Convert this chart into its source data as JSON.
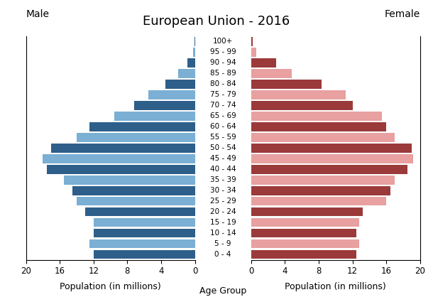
{
  "title": "European Union - 2016",
  "age_groups": [
    "100+",
    "95 - 99",
    "90 - 94",
    "85 - 89",
    "80 - 84",
    "75 - 79",
    "70 - 74",
    "65 - 69",
    "60 - 64",
    "55 - 59",
    "50 - 54",
    "45 - 49",
    "40 - 44",
    "35 - 39",
    "30 - 34",
    "25 - 29",
    "20 - 24",
    "15 - 19",
    "10 - 14",
    "5 - 9",
    "0 - 4"
  ],
  "male": [
    0.05,
    0.25,
    0.9,
    2.0,
    3.5,
    5.5,
    7.2,
    9.5,
    12.5,
    14.0,
    17.0,
    18.0,
    17.5,
    15.5,
    14.5,
    14.0,
    13.0,
    12.0,
    12.0,
    12.5,
    12.0
  ],
  "female": [
    0.2,
    0.6,
    3.0,
    4.8,
    8.3,
    11.2,
    12.0,
    15.5,
    16.0,
    17.0,
    19.0,
    19.2,
    18.5,
    17.0,
    16.5,
    16.0,
    13.2,
    12.8,
    12.5,
    12.8,
    12.5
  ],
  "male_dark": "#2e5f8a",
  "male_light": "#7bafd4",
  "female_dark": "#9b3a3a",
  "female_light": "#e8a0a0",
  "xlabel_left": "Population (in millions)",
  "xlabel_center": "Age Group",
  "xlabel_right": "Population (in millions)",
  "label_male": "Male",
  "label_female": "Female",
  "xlim": 20,
  "background_color": "#ffffff",
  "bar_height": 0.85,
  "title_fontsize": 13,
  "tick_fontsize": 8.5,
  "label_fontsize": 9,
  "age_label_fontsize": 7.5
}
